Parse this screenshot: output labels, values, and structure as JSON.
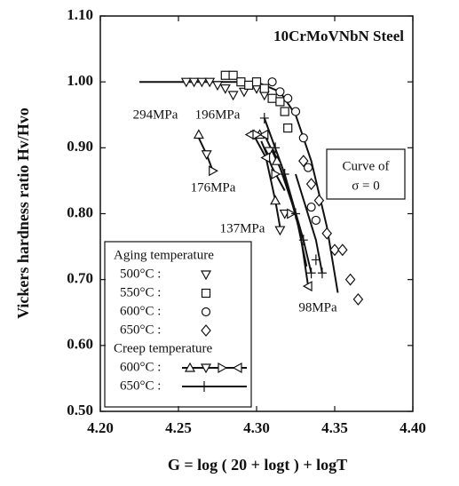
{
  "chart_data": {
    "type": "scatter",
    "title": "10CrMoVNbN Steel",
    "xlabel": "G = log ( 20 + logt ) + logT",
    "ylabel": "Vickers hardness ratio Hv/Hvo",
    "xlim": [
      4.2,
      4.4
    ],
    "ylim": [
      0.5,
      1.1
    ],
    "xticks": [
      {
        "value": 4.2,
        "label": "4.20"
      },
      {
        "value": 4.25,
        "label": "4.25"
      },
      {
        "value": 4.3,
        "label": "4.30"
      },
      {
        "value": 4.35,
        "label": "4.35"
      },
      {
        "value": 4.4,
        "label": "4.40"
      }
    ],
    "yticks": [
      {
        "value": 0.5,
        "label": "0.50"
      },
      {
        "value": 0.6,
        "label": "0.60"
      },
      {
        "value": 0.7,
        "label": "0.70"
      },
      {
        "value": 0.8,
        "label": "0.80"
      },
      {
        "value": 0.9,
        "label": "0.90"
      },
      {
        "value": 1.0,
        "label": "1.00"
      },
      {
        "value": 1.1,
        "label": "1.10"
      }
    ],
    "legend_titles": [
      "Aging temperature",
      "Creep temperature"
    ],
    "legend_position": "lower left",
    "color": "#111111",
    "series": [
      {
        "name": "500°C :",
        "marker": "tri-down",
        "group": 0,
        "x": [
          4.255,
          4.26,
          4.265,
          4.27,
          4.275,
          4.28,
          4.285,
          4.292,
          4.3,
          4.305
        ],
        "y": [
          1.0,
          1.0,
          1.0,
          1.0,
          0.995,
          0.99,
          0.98,
          0.985,
          0.99,
          0.98
        ]
      },
      {
        "name": "550°C :",
        "marker": "square",
        "group": 0,
        "x": [
          4.28,
          4.285,
          4.29,
          4.295,
          4.3,
          4.305,
          4.31,
          4.315,
          4.318,
          4.32
        ],
        "y": [
          1.01,
          1.01,
          1.0,
          0.995,
          1.0,
          0.99,
          0.975,
          0.97,
          0.955,
          0.93
        ]
      },
      {
        "name": "600°C :",
        "marker": "circle",
        "group": 0,
        "x": [
          4.31,
          4.315,
          4.32,
          4.325,
          4.33,
          4.333,
          4.335,
          4.338
        ],
        "y": [
          1.0,
          0.985,
          0.975,
          0.955,
          0.915,
          0.87,
          0.81,
          0.79
        ]
      },
      {
        "name": "650°C :",
        "marker": "diamond",
        "group": 0,
        "x": [
          4.33,
          4.335,
          4.34,
          4.345,
          4.35,
          4.355,
          4.36,
          4.365
        ],
        "y": [
          0.88,
          0.845,
          0.82,
          0.77,
          0.745,
          0.745,
          0.7,
          0.67
        ]
      },
      {
        "name": "600°C :",
        "marker": "tri-mixed",
        "group": 1,
        "x": [
          4.263,
          4.268,
          4.272,
          4.296,
          4.302,
          4.308,
          4.312,
          4.305,
          4.313,
          4.318,
          4.3,
          4.306,
          4.312,
          4.315,
          4.322,
          4.333
        ],
        "y": [
          0.92,
          0.89,
          0.865,
          0.92,
          0.92,
          0.895,
          0.86,
          0.92,
          0.88,
          0.8,
          0.92,
          0.885,
          0.82,
          0.775,
          0.8,
          0.69
        ]
      },
      {
        "name": "650°C :",
        "marker": "plus",
        "group": 1,
        "x": [
          4.305,
          4.312,
          4.318,
          4.325,
          4.33,
          4.335,
          4.338,
          4.342
        ],
        "y": [
          0.945,
          0.9,
          0.86,
          0.8,
          0.76,
          0.71,
          0.73,
          0.71
        ]
      }
    ],
    "curves": [
      {
        "label": [
          "Curve of",
          "σ = 0"
        ],
        "x": [
          4.225,
          4.3,
          4.315,
          4.325,
          4.335,
          4.345,
          4.352
        ],
        "y": [
          1.0,
          1.0,
          0.985,
          0.95,
          0.88,
          0.78,
          0.68
        ]
      },
      {
        "label": [
          "294MPa"
        ],
        "x": [
          4.262,
          4.268,
          4.272
        ],
        "y": [
          0.92,
          0.89,
          0.865
        ]
      },
      {
        "label": [
          "196MPa"
        ],
        "x": [
          4.296,
          4.305,
          4.315,
          4.325,
          4.332
        ],
        "y": [
          0.925,
          0.92,
          0.87,
          0.8,
          0.72
        ]
      },
      {
        "label": [
          "176MPa"
        ],
        "x": [
          4.303,
          4.31,
          4.318
        ],
        "y": [
          0.91,
          0.87,
          0.835
        ]
      },
      {
        "label": [
          "137MPa"
        ],
        "x": [
          4.298,
          4.306,
          4.312,
          4.315
        ],
        "y": [
          0.92,
          0.885,
          0.82,
          0.78
        ]
      },
      {
        "label": [
          "98MPa"
        ],
        "x": [
          4.31,
          4.32,
          4.328,
          4.333
        ],
        "y": [
          0.9,
          0.84,
          0.77,
          0.69
        ]
      },
      {
        "x": [
          4.305,
          4.318,
          4.33,
          4.335
        ],
        "y": [
          0.945,
          0.86,
          0.76,
          0.71
        ]
      },
      {
        "x": [
          4.325,
          4.338,
          4.342
        ],
        "y": [
          0.86,
          0.76,
          0.71
        ]
      }
    ]
  }
}
